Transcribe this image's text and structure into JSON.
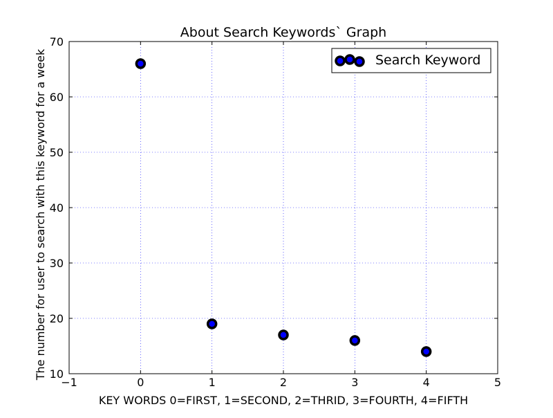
{
  "chart_data": {
    "type": "scatter",
    "title": "About Search Keywords` Graph",
    "xlabel": "KEY WORDS 0=FIRST, 1=SECOND, 2=THRID, 3=FOURTH, 4=FIFTH",
    "ylabel": "The number for user to search with this keyword for a week",
    "xlim": [
      -1,
      5
    ],
    "ylim": [
      10,
      70
    ],
    "xticks": [
      -1,
      0,
      1,
      2,
      3,
      4,
      5
    ],
    "yticks": [
      10,
      20,
      30,
      40,
      50,
      60,
      70
    ],
    "xtick_labels": [
      "−1",
      "0",
      "1",
      "2",
      "3",
      "4",
      "5"
    ],
    "ytick_labels": [
      "10",
      "20",
      "30",
      "40",
      "50",
      "60",
      "70"
    ],
    "grid": true,
    "legend_position": "top-right",
    "series": [
      {
        "name": "Search Keyword",
        "x": [
          0,
          1,
          2,
          3,
          4
        ],
        "y": [
          66,
          19,
          17,
          16,
          14
        ],
        "marker_face_color": "#0000ff",
        "marker_edge_color": "#000000"
      }
    ],
    "grid_color": "#0000ff"
  }
}
